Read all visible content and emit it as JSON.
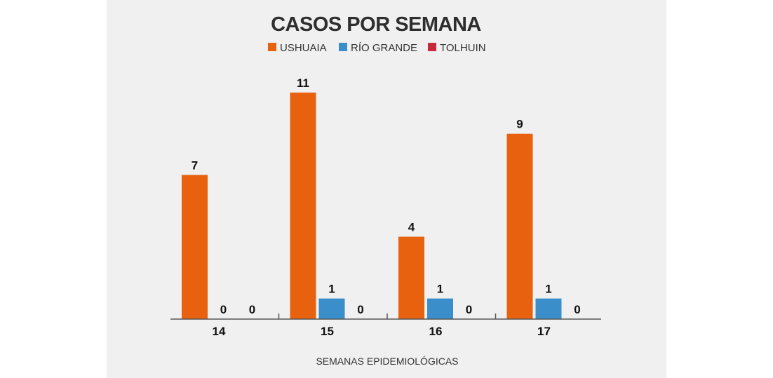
{
  "chart_data": {
    "type": "bar",
    "title": "CASOS POR SEMANA",
    "xlabel": "SEMANAS EPIDEMIOLÓGICAS",
    "ylabel": "",
    "categories": [
      "14",
      "15",
      "16",
      "17"
    ],
    "series": [
      {
        "name": "USHUAIA",
        "color": "#e8610e",
        "values": [
          7,
          11,
          4,
          9
        ]
      },
      {
        "name": "RÍO GRANDE",
        "color": "#3a8ec9",
        "values": [
          0,
          1,
          1,
          1
        ]
      },
      {
        "name": "TOLHUIN",
        "color": "#c8283c",
        "values": [
          0,
          0,
          0,
          0
        ]
      }
    ],
    "ylim": [
      0,
      11
    ],
    "grid": false,
    "legend": "top-center",
    "data_labels": true
  }
}
